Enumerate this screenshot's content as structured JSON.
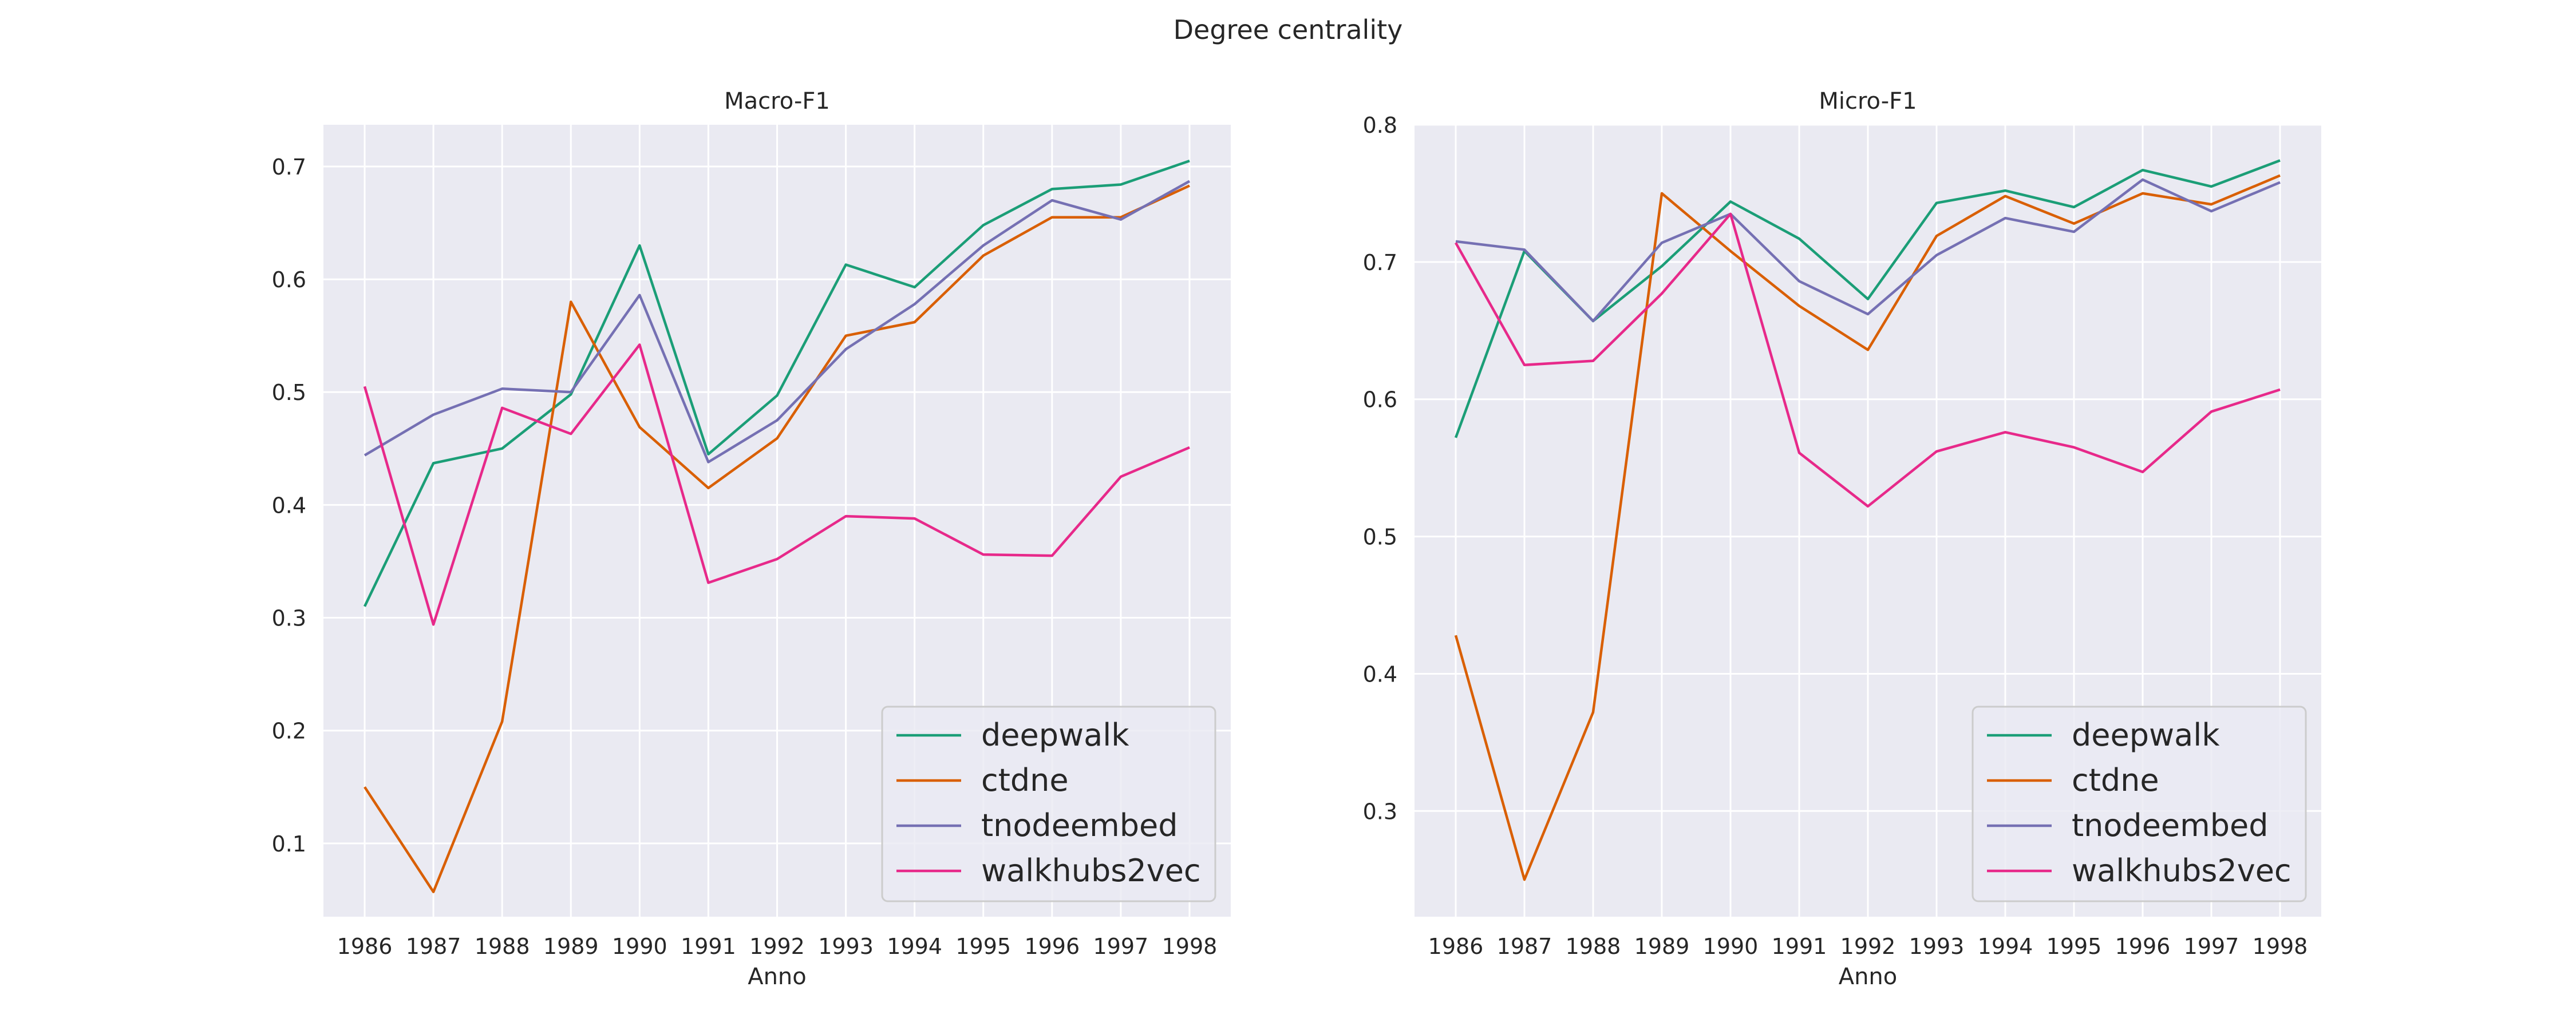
{
  "figure_title": "Degree centrality",
  "chart_data": [
    {
      "type": "line",
      "title": "Macro-F1",
      "xlabel": "Anno",
      "ylabel": "",
      "x": [
        1986,
        1987,
        1988,
        1989,
        1990,
        1991,
        1992,
        1993,
        1994,
        1995,
        1996,
        1997,
        1998
      ],
      "x_tick_labels": [
        "1986",
        "1987",
        "1988",
        "1989",
        "1990",
        "1991",
        "1992",
        "1993",
        "1994",
        "1995",
        "1996",
        "1997",
        "1998"
      ],
      "ylim": [
        0.035,
        0.737
      ],
      "y_ticks": [
        0.1,
        0.2,
        0.3,
        0.4,
        0.5,
        0.6,
        0.7
      ],
      "y_tick_labels": [
        "0.1",
        "0.2",
        "0.3",
        "0.4",
        "0.5",
        "0.6",
        "0.7"
      ],
      "grid": true,
      "legend_position": "bottom-right",
      "series": [
        {
          "name": "deepwalk",
          "color": "#1b9e77",
          "values": [
            0.31,
            0.437,
            0.45,
            0.498,
            0.63,
            0.445,
            0.497,
            0.613,
            0.593,
            0.648,
            0.68,
            0.684,
            0.705
          ]
        },
        {
          "name": "ctdne",
          "color": "#d95f02",
          "values": [
            0.15,
            0.057,
            0.208,
            0.58,
            0.469,
            0.415,
            0.459,
            0.55,
            0.562,
            0.621,
            0.655,
            0.655,
            0.683
          ]
        },
        {
          "name": "tnodeembed",
          "color": "#7570b3",
          "values": [
            0.444,
            0.48,
            0.503,
            0.5,
            0.586,
            0.438,
            0.475,
            0.538,
            0.578,
            0.63,
            0.67,
            0.653,
            0.687
          ]
        },
        {
          "name": "walkhubs2vec",
          "color": "#e7298a",
          "values": [
            0.505,
            0.294,
            0.486,
            0.463,
            0.542,
            0.331,
            0.352,
            0.39,
            0.388,
            0.356,
            0.355,
            0.425,
            0.451
          ]
        }
      ]
    },
    {
      "type": "line",
      "title": "Micro-F1",
      "xlabel": "Anno",
      "ylabel": "",
      "x": [
        1986,
        1987,
        1988,
        1989,
        1990,
        1991,
        1992,
        1993,
        1994,
        1995,
        1996,
        1997,
        1998
      ],
      "x_tick_labels": [
        "1986",
        "1987",
        "1988",
        "1989",
        "1990",
        "1991",
        "1992",
        "1993",
        "1994",
        "1995",
        "1996",
        "1997",
        "1998"
      ],
      "ylim": [
        0.223,
        0.8
      ],
      "y_ticks": [
        0.3,
        0.4,
        0.5,
        0.6,
        0.7,
        0.8
      ],
      "y_tick_labels": [
        "0.3",
        "0.4",
        "0.5",
        "0.6",
        "0.7",
        "0.8"
      ],
      "grid": true,
      "legend_position": "bottom-right",
      "series": [
        {
          "name": "deepwalk",
          "color": "#1b9e77",
          "values": [
            0.572,
            0.708,
            0.657,
            0.697,
            0.744,
            0.717,
            0.673,
            0.743,
            0.752,
            0.74,
            0.767,
            0.755,
            0.774
          ]
        },
        {
          "name": "ctdne",
          "color": "#d95f02",
          "values": [
            0.428,
            0.25,
            0.372,
            0.75,
            0.708,
            0.668,
            0.636,
            0.719,
            0.748,
            0.728,
            0.75,
            0.742,
            0.763
          ]
        },
        {
          "name": "tnodeembed",
          "color": "#7570b3",
          "values": [
            0.715,
            0.709,
            0.657,
            0.714,
            0.735,
            0.686,
            0.662,
            0.705,
            0.732,
            0.722,
            0.76,
            0.737,
            0.758
          ]
        },
        {
          "name": "walkhubs2vec",
          "color": "#e7298a",
          "values": [
            0.714,
            0.625,
            0.628,
            0.677,
            0.735,
            0.561,
            0.522,
            0.562,
            0.576,
            0.565,
            0.547,
            0.591,
            0.607
          ]
        }
      ]
    }
  ]
}
